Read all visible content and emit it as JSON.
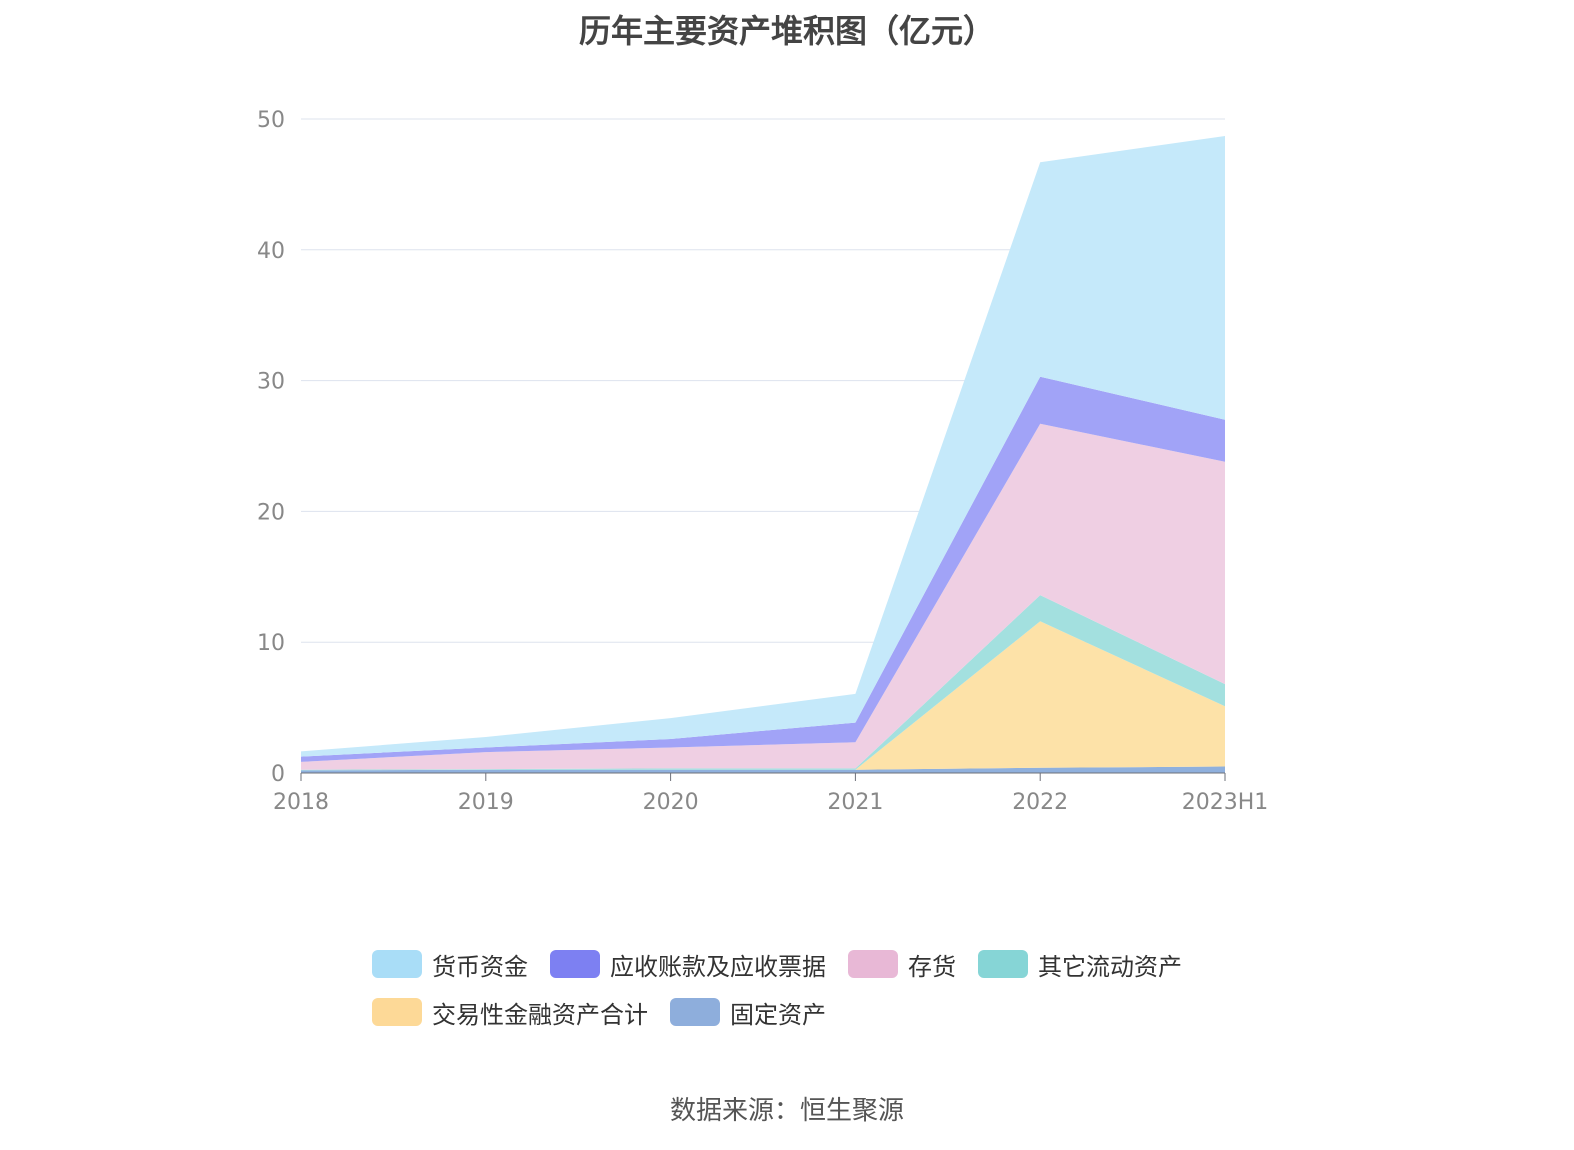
{
  "chart_data": {
    "type": "area",
    "stacked": true,
    "title": "历年主要资产堆积图（亿元）",
    "categories": [
      "2018",
      "2019",
      "2020",
      "2021",
      "2022",
      "2023H1"
    ],
    "ylim": [
      0,
      50
    ],
    "yticks": [
      0,
      10,
      20,
      30,
      40,
      50
    ],
    "grid": true,
    "legend_position": "bottom",
    "series": [
      {
        "name": "固定资产",
        "color": "#8fb0dd",
        "values": [
          0.2,
          0.25,
          0.25,
          0.25,
          0.4,
          0.5
        ]
      },
      {
        "name": "交易性金融资产合计",
        "color": "#fde2a8",
        "values": [
          0.0,
          0.0,
          0.0,
          0.0,
          11.2,
          4.6
        ]
      },
      {
        "name": "其它流动资产",
        "color": "#a3e0df",
        "values": [
          0.05,
          0.05,
          0.1,
          0.1,
          2.0,
          1.7
        ]
      },
      {
        "name": "存货",
        "color": "#efcfe3",
        "values": [
          0.6,
          1.3,
          1.6,
          2.0,
          13.1,
          17.0
        ]
      },
      {
        "name": "应收账款及应收票据",
        "color": "#a1a3f7",
        "values": [
          0.4,
          0.35,
          0.65,
          1.5,
          3.6,
          3.2
        ]
      },
      {
        "name": "货币资金",
        "color": "#c5e9fa",
        "values": [
          0.4,
          0.8,
          1.6,
          2.2,
          16.4,
          21.7
        ]
      }
    ]
  },
  "legend": [
    {
      "label": "货币资金",
      "color": "#a9ddf7"
    },
    {
      "label": "应收账款及应收票据",
      "color": "#7d80f2"
    },
    {
      "label": "存货",
      "color": "#e8b8d6"
    },
    {
      "label": "其它流动资产",
      "color": "#86d5d6"
    },
    {
      "label": "交易性金融资产合计",
      "color": "#fdd997"
    },
    {
      "label": "固定资产",
      "color": "#8eaedc"
    }
  ],
  "source": "数据来源：恒生聚源"
}
